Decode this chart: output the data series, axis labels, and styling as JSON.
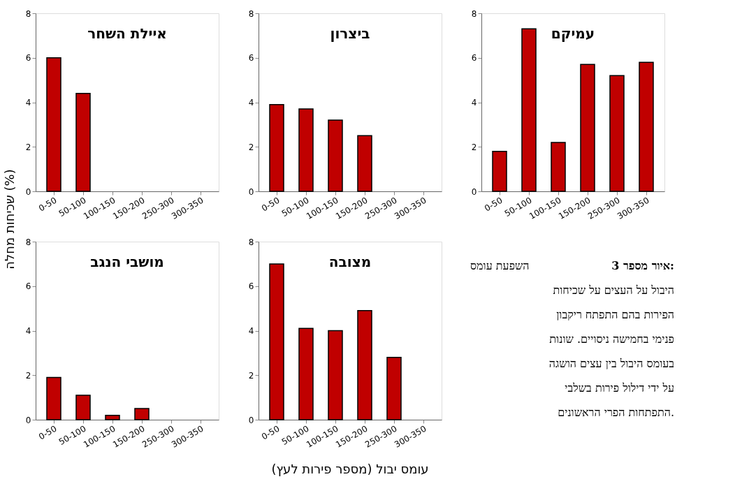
{
  "chart_data": [
    {
      "type": "bar",
      "title": "איילת השחר",
      "categories": [
        "0-50",
        "50-100",
        "100-150",
        "150-200",
        "250-300",
        "300-350"
      ],
      "values": [
        6.0,
        4.4,
        null,
        null,
        null,
        null
      ],
      "color": "#c00000",
      "ylim": [
        0,
        8
      ],
      "yticks": [
        0,
        2,
        4,
        6,
        8
      ],
      "grid": false,
      "ylabel": "שכיחות מחלה (%)"
    },
    {
      "type": "bar",
      "title": "ביצרון",
      "categories": [
        "0-50",
        "50-100",
        "100-150",
        "150-200",
        "250-300",
        "300-350"
      ],
      "values": [
        3.9,
        3.7,
        3.2,
        2.5,
        null,
        null
      ],
      "color": "#c00000",
      "ylim": [
        0,
        8
      ],
      "yticks": [
        0,
        2,
        4,
        6,
        8
      ],
      "grid": false
    },
    {
      "type": "bar",
      "title": "עמיקם",
      "categories": [
        "0-50",
        "50-100",
        "100-150",
        "150-200",
        "250-300",
        "300-350"
      ],
      "values": [
        1.8,
        7.3,
        2.2,
        5.7,
        5.2,
        5.8
      ],
      "color": "#c00000",
      "ylim": [
        0,
        8
      ],
      "yticks": [
        0,
        2,
        4,
        6,
        8
      ],
      "grid": false
    },
    {
      "type": "bar",
      "title": "מושבי הנגב",
      "categories": [
        "0-50",
        "50-100",
        "100-150",
        "150-200",
        "250-300",
        "300-350"
      ],
      "values": [
        1.9,
        1.1,
        0.2,
        0.5,
        null,
        null
      ],
      "color": "#c00000",
      "ylim": [
        0,
        8
      ],
      "yticks": [
        0,
        2,
        4,
        6,
        8
      ],
      "grid": false
    },
    {
      "type": "bar",
      "title": "מצובה",
      "categories": [
        "0-50",
        "50-100",
        "100-150",
        "150-200",
        "250-300",
        "300-350"
      ],
      "values": [
        7.0,
        4.1,
        4.0,
        4.9,
        2.8,
        null
      ],
      "color": "#c00000",
      "ylim": [
        0,
        8
      ],
      "yticks": [
        0,
        2,
        4,
        6,
        8
      ],
      "grid": false,
      "xlabel": "עומס יבול (מספר פירות לעץ)"
    },
    {
      "type": "other",
      "title": "איור מספר 3:",
      "annotations": [
        "השפעת עומס",
        "היבול על העצים על שכיחות",
        "הפירות בהם התפתח ריקבון",
        "פנימי בחמישה ניסויים. שונות",
        "בעומס היבול בין עצים הושגה",
        "על ידי דילול פירות בשלבי",
        "התפתחות הפרי הראשונים."
      ]
    }
  ]
}
